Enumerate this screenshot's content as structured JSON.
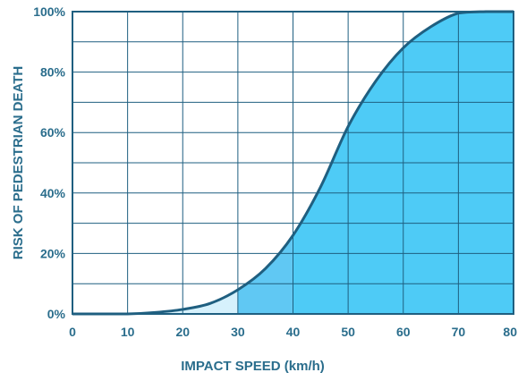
{
  "chart_data": {
    "type": "area",
    "title": "",
    "xlabel": "IMPACT SPEED (km/h)",
    "ylabel": "RISK OF PEDESTRIAN DEATH",
    "xlim": [
      0,
      80
    ],
    "ylim": [
      0,
      100
    ],
    "x_ticks": [
      0,
      10,
      20,
      30,
      40,
      50,
      60,
      70,
      80
    ],
    "x_tick_labels": [
      "0",
      "10",
      "20",
      "30",
      "40",
      "50",
      "60",
      "70",
      "80"
    ],
    "y_ticks": [
      0,
      20,
      40,
      60,
      80,
      100
    ],
    "y_tick_labels": [
      "0%",
      "20%",
      "40%",
      "60%",
      "80%",
      "100%"
    ],
    "x_minor_grid_step": 10,
    "y_minor_grid_step": 10,
    "grid": true,
    "series": [
      {
        "x": [
          0,
          5,
          10,
          15,
          20,
          25,
          30,
          35,
          40,
          45,
          50,
          55,
          60,
          65,
          70,
          75,
          80
        ],
        "values": [
          0,
          0,
          0,
          0.5,
          1.5,
          3.5,
          8,
          15,
          26,
          42,
          62,
          77,
          88,
          95,
          99.5,
          100,
          100
        ]
      }
    ],
    "shaded_bands": [
      {
        "x_from": 0,
        "x_to": 30,
        "color": "#d6f1fc"
      },
      {
        "x_from": 30,
        "x_to": 40,
        "color": "#60c8f3"
      },
      {
        "x_from": 40,
        "x_to": 80,
        "color": "#4ecbf6"
      }
    ],
    "colors": {
      "axis_text": "#2a6d8c",
      "curve": "#1f5f80",
      "grid": "#1f5f80",
      "frame": "#1f5f80"
    }
  }
}
